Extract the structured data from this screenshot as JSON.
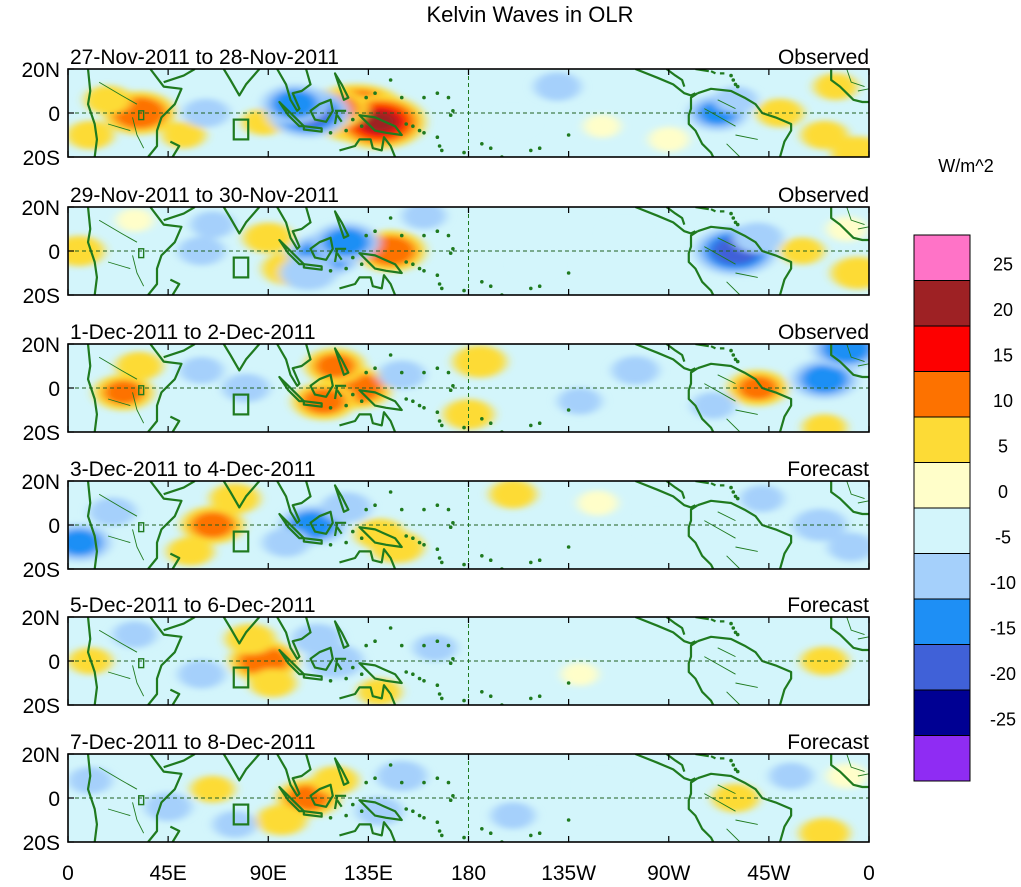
{
  "chart_data": {
    "type": "heatmap",
    "title": "Kelvin Waves in OLR",
    "colorbar": {
      "unit": "W/m^2",
      "tick_labels": [
        "25",
        "20",
        "15",
        "10",
        "5",
        "0",
        "-5",
        "-10",
        "-15",
        "-20",
        "-25"
      ],
      "colors_top_to_bottom": [
        "#ff73c7",
        "#9e2124",
        "#fd0000",
        "#fd7200",
        "#fddb36",
        "#fffec9",
        "#d3f5fb",
        "#a5d0fb",
        "#1e8ff5",
        "#4061d8",
        "#000093",
        "#8f2cf3"
      ]
    },
    "x_axis": {
      "range_deg_east": [
        0,
        360
      ],
      "ticks": [
        {
          "lon": 0,
          "label": "0"
        },
        {
          "lon": 45,
          "label": "45E"
        },
        {
          "lon": 90,
          "label": "90E"
        },
        {
          "lon": 135,
          "label": "135E"
        },
        {
          "lon": 180,
          "label": "180"
        },
        {
          "lon": 225,
          "label": "135W"
        },
        {
          "lon": 270,
          "label": "90W"
        },
        {
          "lon": 315,
          "label": "45W"
        },
        {
          "lon": 360,
          "label": "0"
        }
      ]
    },
    "y_axis": {
      "range_deg": [
        -20,
        20
      ],
      "ticks": [
        {
          "lat": 20,
          "label": "20N"
        },
        {
          "lat": 0,
          "label": "0"
        },
        {
          "lat": -20,
          "label": "20S"
        }
      ]
    },
    "panels": [
      {
        "period": "27-Nov-2011 to 28-Nov-2011",
        "status": "Observed",
        "anomalies": [
          {
            "lon": 130,
            "lat": 0,
            "value": 22
          },
          {
            "lon": 140,
            "lat": -4,
            "value": 20
          },
          {
            "lon": 120,
            "lat": 2,
            "value": 12
          },
          {
            "lon": 32,
            "lat": 0,
            "value": 14
          },
          {
            "lon": 18,
            "lat": 6,
            "value": 6
          },
          {
            "lon": 10,
            "lat": -10,
            "value": 6
          },
          {
            "lon": 52,
            "lat": -10,
            "value": 5
          },
          {
            "lon": 88,
            "lat": -4,
            "value": 5
          },
          {
            "lon": 108,
            "lat": 0,
            "value": -17
          },
          {
            "lon": 102,
            "lat": 4,
            "value": -12
          },
          {
            "lon": 62,
            "lat": 0,
            "value": -6
          },
          {
            "lon": 220,
            "lat": 12,
            "value": -6
          },
          {
            "lon": 292,
            "lat": 0,
            "value": -10
          },
          {
            "lon": 300,
            "lat": 6,
            "value": -5
          },
          {
            "lon": 320,
            "lat": 0,
            "value": 6
          },
          {
            "lon": 340,
            "lat": -10,
            "value": 6
          },
          {
            "lon": 345,
            "lat": 12,
            "value": 5
          },
          {
            "lon": 355,
            "lat": -18,
            "value": 8
          },
          {
            "lon": 270,
            "lat": -12,
            "value": 4
          },
          {
            "lon": 240,
            "lat": -6,
            "value": 3
          },
          {
            "lon": 200,
            "lat": -4,
            "value": -4
          }
        ]
      },
      {
        "period": "29-Nov-2011 to 30-Nov-2011",
        "status": "Observed",
        "anomalies": [
          {
            "lon": 145,
            "lat": 0,
            "value": 13
          },
          {
            "lon": 100,
            "lat": -8,
            "value": 9
          },
          {
            "lon": 90,
            "lat": 6,
            "value": 7
          },
          {
            "lon": 5,
            "lat": 0,
            "value": 7
          },
          {
            "lon": 115,
            "lat": -2,
            "value": -14
          },
          {
            "lon": 125,
            "lat": 4,
            "value": -12
          },
          {
            "lon": 108,
            "lat": -10,
            "value": -9
          },
          {
            "lon": 60,
            "lat": 0,
            "value": -6
          },
          {
            "lon": 65,
            "lat": 12,
            "value": -5
          },
          {
            "lon": 300,
            "lat": 0,
            "value": -17
          },
          {
            "lon": 310,
            "lat": 6,
            "value": -7
          },
          {
            "lon": 330,
            "lat": 0,
            "value": 5
          },
          {
            "lon": 355,
            "lat": -10,
            "value": 8
          },
          {
            "lon": 350,
            "lat": 10,
            "value": 4
          },
          {
            "lon": 30,
            "lat": 14,
            "value": 3
          },
          {
            "lon": 210,
            "lat": -6,
            "value": -4
          },
          {
            "lon": 250,
            "lat": 8,
            "value": -4
          },
          {
            "lon": 160,
            "lat": 16,
            "value": -5
          }
        ]
      },
      {
        "period": "1-Dec-2011 to 2-Dec-2011",
        "status": "Observed",
        "anomalies": [
          {
            "lon": 130,
            "lat": 0,
            "value": 13
          },
          {
            "lon": 120,
            "lat": 10,
            "value": 10
          },
          {
            "lon": 115,
            "lat": -6,
            "value": 11
          },
          {
            "lon": 25,
            "lat": -2,
            "value": 10
          },
          {
            "lon": 32,
            "lat": 10,
            "value": 6
          },
          {
            "lon": 185,
            "lat": 12,
            "value": 8
          },
          {
            "lon": 180,
            "lat": -12,
            "value": 7
          },
          {
            "lon": 310,
            "lat": 0,
            "value": 10
          },
          {
            "lon": 340,
            "lat": -18,
            "value": 5
          },
          {
            "lon": 80,
            "lat": 0,
            "value": -6
          },
          {
            "lon": 60,
            "lat": 8,
            "value": -5
          },
          {
            "lon": 150,
            "lat": 6,
            "value": -6
          },
          {
            "lon": 340,
            "lat": 4,
            "value": -12
          },
          {
            "lon": 350,
            "lat": 18,
            "value": -13
          },
          {
            "lon": 255,
            "lat": 8,
            "value": -6
          },
          {
            "lon": 230,
            "lat": -6,
            "value": -5
          },
          {
            "lon": 290,
            "lat": -8,
            "value": -5
          }
        ]
      },
      {
        "period": "3-Dec-2011 to 4-Dec-2011",
        "status": "Forecast",
        "anomalies": [
          {
            "lon": 65,
            "lat": 0,
            "value": 11
          },
          {
            "lon": 75,
            "lat": 12,
            "value": 7
          },
          {
            "lon": 55,
            "lat": -12,
            "value": 6
          },
          {
            "lon": 140,
            "lat": -4,
            "value": 7
          },
          {
            "lon": 148,
            "lat": -10,
            "value": 8
          },
          {
            "lon": 200,
            "lat": 14,
            "value": 6
          },
          {
            "lon": 238,
            "lat": 10,
            "value": 4
          },
          {
            "lon": 110,
            "lat": 0,
            "value": -12
          },
          {
            "lon": 125,
            "lat": 8,
            "value": -7
          },
          {
            "lon": 98,
            "lat": -8,
            "value": -6
          },
          {
            "lon": 5,
            "lat": -8,
            "value": -11
          },
          {
            "lon": 20,
            "lat": 6,
            "value": -6
          },
          {
            "lon": 338,
            "lat": 0,
            "value": -8
          },
          {
            "lon": 352,
            "lat": -10,
            "value": -6
          },
          {
            "lon": 312,
            "lat": 12,
            "value": -5
          },
          {
            "lon": 175,
            "lat": -6,
            "value": -4
          },
          {
            "lon": 265,
            "lat": 0,
            "value": -3
          }
        ]
      },
      {
        "period": "5-Dec-2011 to 6-Dec-2011",
        "status": "Forecast",
        "anomalies": [
          {
            "lon": 88,
            "lat": 0,
            "value": 13
          },
          {
            "lon": 82,
            "lat": 10,
            "value": 7
          },
          {
            "lon": 92,
            "lat": -10,
            "value": 6
          },
          {
            "lon": 140,
            "lat": -14,
            "value": 5
          },
          {
            "lon": 230,
            "lat": -6,
            "value": 3
          },
          {
            "lon": 340,
            "lat": 0,
            "value": 6
          },
          {
            "lon": 10,
            "lat": 0,
            "value": 5
          },
          {
            "lon": 120,
            "lat": 0,
            "value": -9
          },
          {
            "lon": 112,
            "lat": 10,
            "value": -7
          },
          {
            "lon": 60,
            "lat": -6,
            "value": -6
          },
          {
            "lon": 30,
            "lat": 12,
            "value": -5
          },
          {
            "lon": 165,
            "lat": 6,
            "value": -5
          },
          {
            "lon": 300,
            "lat": 10,
            "value": -4
          },
          {
            "lon": 355,
            "lat": 14,
            "value": -4
          },
          {
            "lon": 315,
            "lat": -12,
            "value": -4
          }
        ]
      },
      {
        "period": "7-Dec-2011 to 8-Dec-2011",
        "status": "Forecast",
        "anomalies": [
          {
            "lon": 108,
            "lat": 0,
            "value": 11
          },
          {
            "lon": 96,
            "lat": -10,
            "value": 7
          },
          {
            "lon": 120,
            "lat": 8,
            "value": 6
          },
          {
            "lon": 65,
            "lat": 4,
            "value": 5
          },
          {
            "lon": 300,
            "lat": 0,
            "value": 6
          },
          {
            "lon": 340,
            "lat": -16,
            "value": 7
          },
          {
            "lon": 350,
            "lat": 10,
            "value": 4
          },
          {
            "lon": 150,
            "lat": 10,
            "value": -7
          },
          {
            "lon": 140,
            "lat": -6,
            "value": -6
          },
          {
            "lon": 45,
            "lat": -4,
            "value": -6
          },
          {
            "lon": 75,
            "lat": -12,
            "value": -5
          },
          {
            "lon": 10,
            "lat": 8,
            "value": -5
          },
          {
            "lon": 200,
            "lat": -8,
            "value": -5
          },
          {
            "lon": 240,
            "lat": 6,
            "value": -4
          },
          {
            "lon": 325,
            "lat": 10,
            "value": -5
          }
        ]
      }
    ]
  }
}
